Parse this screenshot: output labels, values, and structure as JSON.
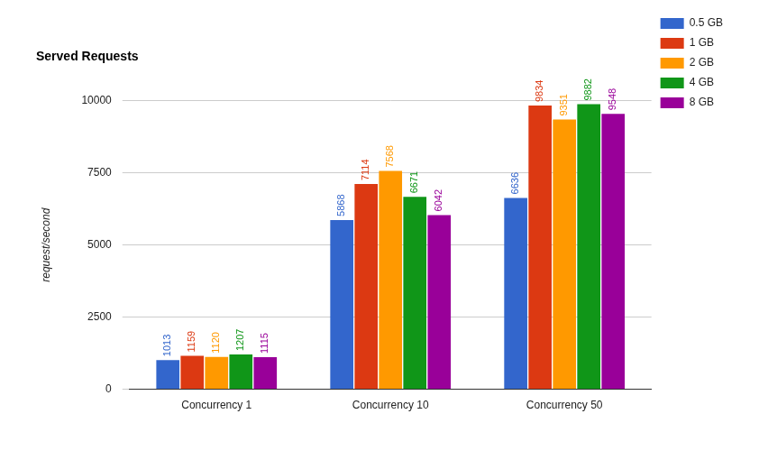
{
  "chart_data": {
    "type": "bar",
    "title": "Served Requests",
    "y_label": "request/second",
    "categories": [
      "Concurrency 1",
      "Concurrency 10",
      "Concurrency 50"
    ],
    "series": [
      {
        "name": "0.5 GB",
        "color": "#3366cc",
        "values": [
          1013,
          5868,
          6636
        ]
      },
      {
        "name": "1 GB",
        "color": "#dc3912",
        "values": [
          1159,
          7114,
          9834
        ]
      },
      {
        "name": "2 GB",
        "color": "#ff9900",
        "values": [
          1120,
          7568,
          9351
        ]
      },
      {
        "name": "4 GB",
        "color": "#109618",
        "values": [
          1207,
          6671,
          9882
        ]
      },
      {
        "name": "8 GB",
        "color": "#990099",
        "values": [
          1115,
          6042,
          9548
        ]
      }
    ],
    "ylim": [
      0,
      10000
    ],
    "yticks": [
      0,
      2500,
      5000,
      7500,
      10000
    ],
    "grid": true,
    "legend": "top-right",
    "data_labels": true
  }
}
